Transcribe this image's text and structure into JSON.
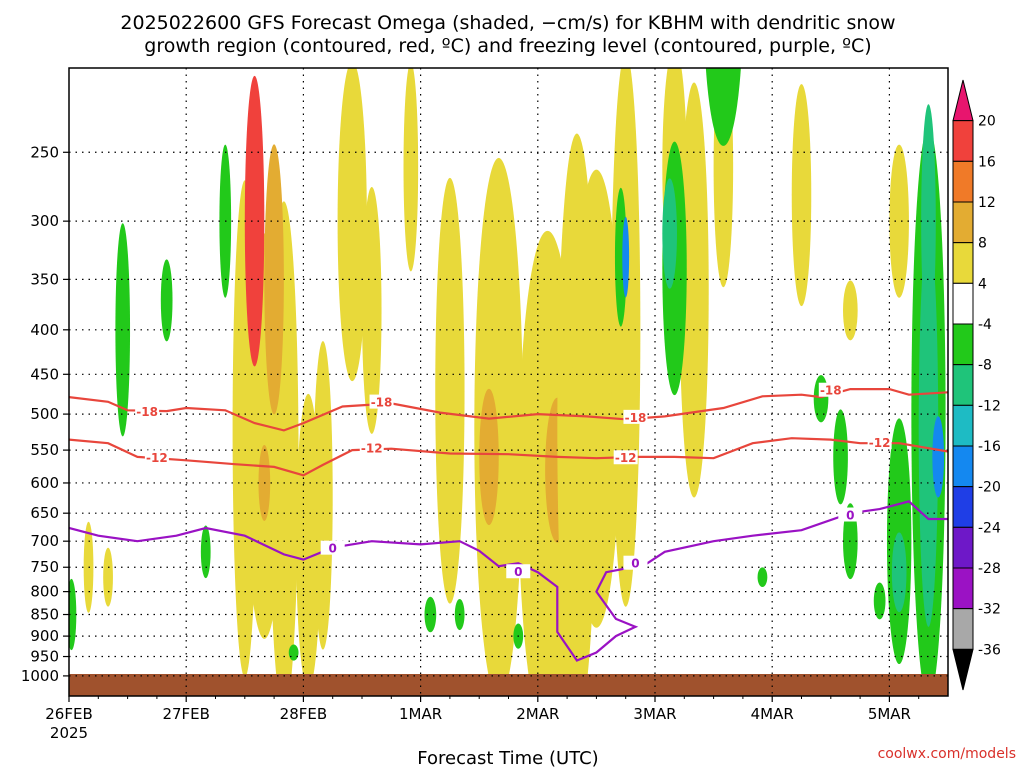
{
  "title_line1": "2025022600 GFS Forecast Omega (shaded, −cm/s) for KBHM with dendritic snow",
  "title_line2": "growth region (contoured, red, ºC) and freezing level (contoured, purple, ºC)",
  "credit": "coolwx.com/models",
  "colors": {
    "dendritic_contour": "#e8463c",
    "freezing_contour": "#9a12c4",
    "ground": "#a0522d",
    "gridline": "#000000"
  },
  "chart_data": {
    "type": "heatmap",
    "xlabel": "Forecast Time (UTC)",
    "x_ticks": [
      "26FEB",
      "27FEB",
      "28FEB",
      "1MAR",
      "2MAR",
      "3MAR",
      "4MAR",
      "5MAR"
    ],
    "x_year_label": "2025",
    "x_start_hour": 0,
    "x_end_hour": 180,
    "ylabel": "",
    "y_ticks": [
      250,
      300,
      350,
      400,
      450,
      500,
      550,
      600,
      650,
      700,
      750,
      800,
      850,
      900,
      950,
      1000
    ],
    "ylim": [
      1000,
      200
    ],
    "grid": true,
    "colorbar": {
      "levels": [
        20,
        16,
        12,
        8,
        4,
        -4,
        -8,
        -12,
        -16,
        -20,
        -24,
        -28,
        -32,
        -36
      ],
      "colors": [
        "#e8156e",
        "#f0413c",
        "#f07a28",
        "#e3ac32",
        "#e8d93a",
        "#ffffff",
        "#22c91a",
        "#1fc47a",
        "#1ebbc4",
        "#1488f0",
        "#1f3ee6",
        "#6e18c8",
        "#9b12c4",
        "#a8a8a8",
        "#000000"
      ]
    },
    "contours": [
      {
        "level": "-18",
        "color": "#e8463c",
        "labels": [
          "-18",
          "-18",
          "-18",
          "-18"
        ]
      },
      {
        "level": "-12",
        "color": "#e8463c",
        "labels": [
          "-12",
          "-12",
          "-12",
          "-12"
        ]
      },
      {
        "level": "0",
        "color": "#9a12c4",
        "labels": [
          "0",
          "0",
          "0",
          "0"
        ]
      }
    ]
  }
}
